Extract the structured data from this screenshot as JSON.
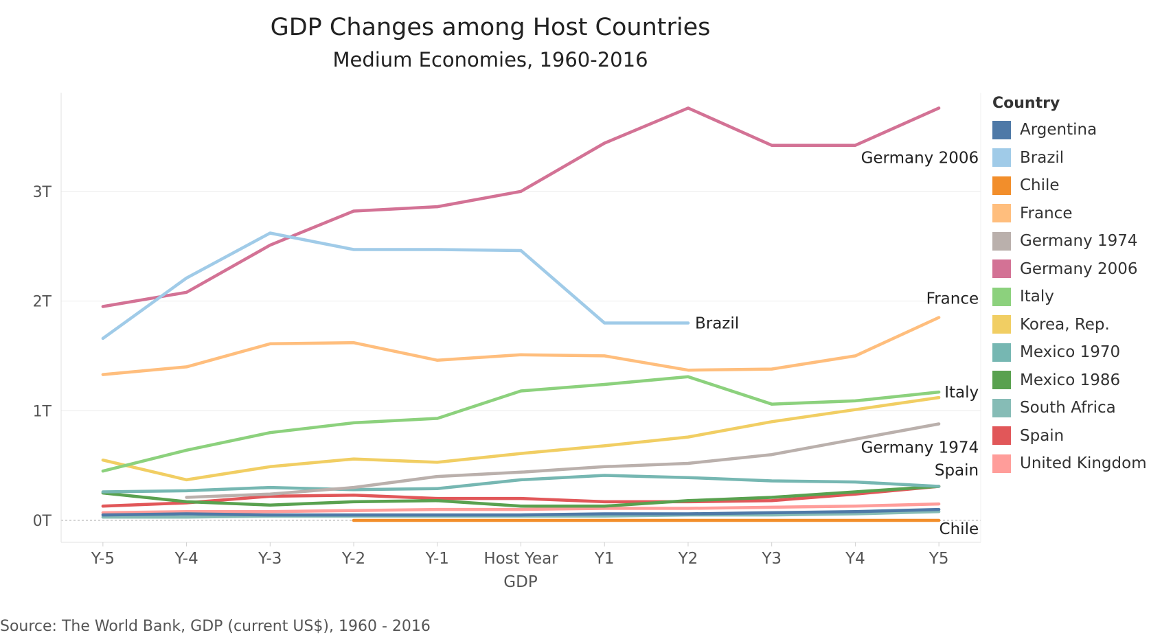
{
  "chart_data": {
    "type": "line",
    "title": "GDP Changes among Host Countries",
    "subtitle": "Medium Economies, 1960-2016",
    "xlabel": "GDP",
    "ylabel": "",
    "source": "Source: The World Bank, GDP (current US$), 1960 - 2016",
    "categories": [
      "Y-5",
      "Y-4",
      "Y-3",
      "Y-2",
      "Y-1",
      "Host Year",
      "Y1",
      "Y2",
      "Y3",
      "Y4",
      "Y5"
    ],
    "ylim": [
      -0.2,
      3.9
    ],
    "yticks": [
      {
        "value": 0,
        "label": "0T"
      },
      {
        "value": 1,
        "label": "1T"
      },
      {
        "value": 2,
        "label": "2T"
      },
      {
        "value": 3,
        "label": "3T"
      }
    ],
    "grid": "horizontal",
    "legend": {
      "title": "Country",
      "position": "right"
    },
    "series": [
      {
        "name": "Argentina",
        "color": "#4e79a7",
        "values": [
          0.05,
          0.06,
          0.05,
          0.05,
          0.05,
          0.05,
          0.06,
          0.06,
          0.07,
          0.08,
          0.1
        ]
      },
      {
        "name": "Brazil",
        "color": "#a0cbe8",
        "values": [
          1.66,
          2.21,
          2.62,
          2.47,
          2.47,
          2.46,
          1.8,
          1.8,
          null,
          null,
          null
        ],
        "label": "Brazil"
      },
      {
        "name": "Chile",
        "color": "#f28e2b",
        "values": [
          null,
          null,
          null,
          0.0,
          0.0,
          0.0,
          0.0,
          0.0,
          0.0,
          0.0,
          0.0
        ],
        "label": "Chile"
      },
      {
        "name": "France",
        "color": "#ffbe7d",
        "values": [
          1.33,
          1.4,
          1.61,
          1.62,
          1.46,
          1.51,
          1.5,
          1.37,
          1.38,
          1.5,
          1.85
        ],
        "label": "France"
      },
      {
        "name": "Germany 1974",
        "color": "#bab0ac",
        "values": [
          null,
          0.21,
          0.24,
          0.3,
          0.4,
          0.44,
          0.49,
          0.52,
          0.6,
          0.74,
          0.88
        ],
        "label": "Germany 1974"
      },
      {
        "name": "Germany 2006",
        "color": "#d37295",
        "values": [
          1.95,
          2.08,
          2.51,
          2.82,
          2.86,
          3.0,
          3.44,
          3.76,
          3.42,
          3.42,
          3.76
        ],
        "label": "Germany 2006"
      },
      {
        "name": "Italy",
        "color": "#8cd17d",
        "values": [
          0.45,
          0.64,
          0.8,
          0.89,
          0.93,
          1.18,
          1.24,
          1.31,
          1.06,
          1.09,
          1.17
        ],
        "label": "Italy"
      },
      {
        "name": "Korea, Rep.",
        "color": "#f1ce63",
        "values": [
          0.55,
          0.37,
          0.49,
          0.56,
          0.53,
          0.61,
          0.68,
          0.76,
          0.9,
          1.01,
          1.12
        ]
      },
      {
        "name": "Mexico 1970",
        "color": "#76b7b2",
        "values": [
          0.26,
          0.27,
          0.3,
          0.28,
          0.29,
          0.37,
          0.41,
          0.39,
          0.36,
          0.35,
          0.31
        ]
      },
      {
        "name": "Mexico 1986",
        "color": "#59a14f",
        "values": [
          0.25,
          0.17,
          0.14,
          0.17,
          0.18,
          0.13,
          0.13,
          0.18,
          0.21,
          0.26,
          0.31
        ]
      },
      {
        "name": "South Africa",
        "color": "#86bcb6",
        "values": [
          0.03,
          0.03,
          0.04,
          0.04,
          0.04,
          0.04,
          0.04,
          0.05,
          0.05,
          0.06,
          0.08
        ]
      },
      {
        "name": "Spain",
        "color": "#e15759",
        "values": [
          0.13,
          0.16,
          0.22,
          0.23,
          0.2,
          0.2,
          0.17,
          0.17,
          0.18,
          0.24,
          0.31
        ],
        "label": "Spain"
      },
      {
        "name": "United Kingdom",
        "color": "#ff9d9a",
        "values": [
          0.07,
          0.08,
          0.08,
          0.09,
          0.1,
          0.1,
          0.11,
          0.11,
          0.12,
          0.13,
          0.15
        ]
      }
    ]
  }
}
